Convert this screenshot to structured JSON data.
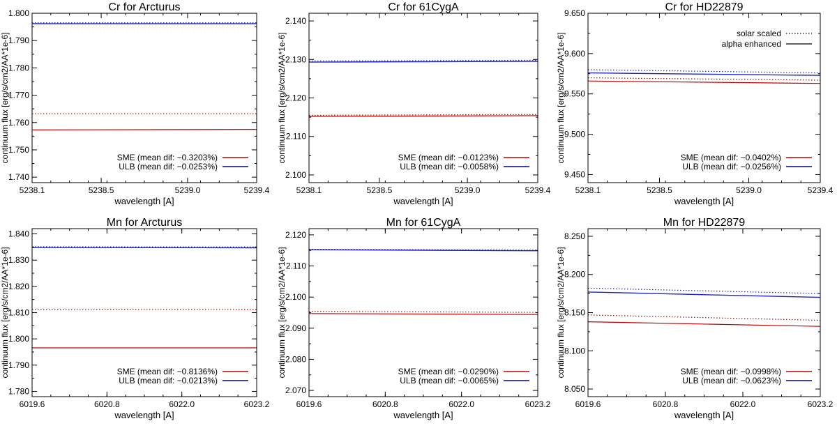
{
  "chart_data": [
    {
      "type": "line",
      "title": "Cr for Arcturus",
      "xlabel": "wavelength [A]",
      "ylabel": "continuum flux [erg/s/cm2/AA*1e-6]",
      "xlim": [
        5238.1,
        5239.4
      ],
      "ylim": [
        1.738,
        1.8
      ],
      "xticks": [
        5238.1,
        5238.5,
        5239.0,
        5239.4
      ],
      "xtick_labels": [
        "5238.1",
        "5238.5",
        "5239.0",
        "5239.4"
      ],
      "yticks": [
        1.74,
        1.75,
        1.76,
        1.77,
        1.78,
        1.79,
        1.8
      ],
      "ytick_labels": [
        "1.740",
        "1.750",
        "1.760",
        "1.770",
        "1.780",
        "1.790",
        "1.800"
      ],
      "legend": {
        "placement": "bottom-right",
        "entries": [
          {
            "label": "SME (mean dif: −0.3203%)",
            "color": "#c00000"
          },
          {
            "label": "ULB (mean dif: −0.0253%)",
            "color": "#00008b"
          }
        ]
      },
      "series": [
        {
          "name": "ULB alpha enhanced",
          "color": "#1a22c8",
          "dash": "solid",
          "x": [
            5238.1,
            5239.4
          ],
          "y": [
            1.7962,
            1.7962
          ]
        },
        {
          "name": "ULB solar scaled",
          "color": "#1a22c8",
          "dash": "dotted",
          "x": [
            5238.1,
            5239.4
          ],
          "y": [
            1.7965,
            1.7965
          ]
        },
        {
          "name": "SME alpha enhanced",
          "color": "#c00000",
          "dash": "solid",
          "x": [
            5238.1,
            5239.4
          ],
          "y": [
            1.7573,
            1.7575
          ]
        },
        {
          "name": "SME solar scaled",
          "color": "#c00000",
          "dash": "dotted",
          "x": [
            5238.1,
            5239.4
          ],
          "y": [
            1.7632,
            1.7632
          ]
        }
      ]
    },
    {
      "type": "line",
      "title": "Cr for 61CygA",
      "xlabel": "wavelength [A]",
      "ylabel": "continuum flux [erg/s/cm2/AA*1e-6]",
      "xlim": [
        5238.1,
        5239.4
      ],
      "ylim": [
        2.098,
        2.142
      ],
      "xticks": [
        5238.1,
        5238.5,
        5239.0,
        5239.4
      ],
      "xtick_labels": [
        "5238.1",
        "5238.5",
        "5239.0",
        "5239.4"
      ],
      "yticks": [
        2.1,
        2.11,
        2.12,
        2.13,
        2.14
      ],
      "ytick_labels": [
        "2.100",
        "2.110",
        "2.120",
        "2.130",
        "2.140"
      ],
      "legend": {
        "placement": "bottom-right",
        "entries": [
          {
            "label": "SME (mean dif: −0.0123%)",
            "color": "#c00000"
          },
          {
            "label": "ULB (mean dif: −0.0058%)",
            "color": "#00008b"
          }
        ]
      },
      "series": [
        {
          "name": "ULB alpha enhanced",
          "color": "#1a22c8",
          "dash": "solid",
          "x": [
            5238.1,
            5239.4
          ],
          "y": [
            2.1293,
            2.1295
          ]
        },
        {
          "name": "ULB solar scaled",
          "color": "#1a22c8",
          "dash": "dotted",
          "x": [
            5238.1,
            5239.4
          ],
          "y": [
            2.1296,
            2.1298
          ]
        },
        {
          "name": "SME alpha enhanced",
          "color": "#c00000",
          "dash": "solid",
          "x": [
            5238.1,
            5239.4
          ],
          "y": [
            2.1152,
            2.1154
          ]
        },
        {
          "name": "SME solar scaled",
          "color": "#c00000",
          "dash": "dotted",
          "x": [
            5238.1,
            5239.4
          ],
          "y": [
            2.1155,
            2.1157
          ]
        }
      ]
    },
    {
      "type": "line",
      "title": "Cr for HD22879",
      "xlabel": "wavelength [A]",
      "ylabel": "continuum flux [erg/s/cm2/AA*1e-6]",
      "xlim": [
        5238.1,
        5239.4
      ],
      "ylim": [
        9.44,
        9.65
      ],
      "xticks": [
        5238.1,
        5238.5,
        5239.0,
        5239.4
      ],
      "xtick_labels": [
        "5238.1",
        "5238.5",
        "5239.0",
        "5239.4"
      ],
      "yticks": [
        9.45,
        9.5,
        9.55,
        9.6,
        9.65
      ],
      "ytick_labels": [
        "9.450",
        "9.500",
        "9.550",
        "9.600",
        "9.650"
      ],
      "style_legend": [
        {
          "label": "solar scaled",
          "dash": "dotted"
        },
        {
          "label": "alpha enhanced",
          "dash": "solid"
        }
      ],
      "legend": {
        "placement": "bottom-right",
        "entries": [
          {
            "label": "SME (mean dif: −0.0402%)",
            "color": "#c00000"
          },
          {
            "label": "ULB (mean dif: −0.0256%)",
            "color": "#00008b"
          }
        ]
      },
      "series": [
        {
          "name": "ULB alpha enhanced",
          "color": "#1a22c8",
          "dash": "solid",
          "x": [
            5238.1,
            5239.4
          ],
          "y": [
            9.576,
            9.573
          ]
        },
        {
          "name": "ULB solar scaled",
          "color": "#1a22c8",
          "dash": "dotted",
          "x": [
            5238.1,
            5239.4
          ],
          "y": [
            9.58,
            9.576
          ]
        },
        {
          "name": "SME alpha enhanced",
          "color": "#c00000",
          "dash": "solid",
          "x": [
            5238.1,
            5239.4
          ],
          "y": [
            9.566,
            9.563
          ]
        },
        {
          "name": "SME solar scaled",
          "color": "#c00000",
          "dash": "dotted",
          "x": [
            5238.1,
            5239.4
          ],
          "y": [
            9.57,
            9.567
          ]
        }
      ]
    },
    {
      "type": "line",
      "title": "Mn for Arcturus",
      "xlabel": "wavelength [A]",
      "ylabel": "continuum flux [erg/s/cm2/AA*1e-6]",
      "xlim": [
        6019.6,
        6023.2
      ],
      "ylim": [
        1.778,
        1.842
      ],
      "xticks": [
        6019.6,
        6020.8,
        6022.0,
        6023.2
      ],
      "xtick_labels": [
        "6019.6",
        "6020.8",
        "6022.0",
        "6023.2"
      ],
      "yticks": [
        1.78,
        1.79,
        1.8,
        1.81,
        1.82,
        1.83,
        1.84
      ],
      "ytick_labels": [
        "1.780",
        "1.790",
        "1.800",
        "1.810",
        "1.820",
        "1.830",
        "1.840"
      ],
      "legend": {
        "placement": "bottom-right",
        "entries": [
          {
            "label": "SME (mean dif: −0.8136%)",
            "color": "#c00000"
          },
          {
            "label": "ULB (mean dif: −0.0213%)",
            "color": "#00008b"
          }
        ]
      },
      "series": [
        {
          "name": "ULB alpha enhanced",
          "color": "#1a22c8",
          "dash": "solid",
          "x": [
            6019.6,
            6023.2
          ],
          "y": [
            1.8348,
            1.8347
          ]
        },
        {
          "name": "ULB solar scaled",
          "color": "#1a22c8",
          "dash": "dotted",
          "x": [
            6019.6,
            6023.2
          ],
          "y": [
            1.8351,
            1.835
          ]
        },
        {
          "name": "SME alpha enhanced",
          "color": "#c00000",
          "dash": "solid",
          "x": [
            6019.6,
            6023.2
          ],
          "y": [
            1.7966,
            1.7966
          ]
        },
        {
          "name": "SME solar scaled",
          "color": "#c00000",
          "dash": "dotted",
          "x": [
            6019.6,
            6023.2
          ],
          "y": [
            1.8113,
            1.8112
          ]
        }
      ]
    },
    {
      "type": "line",
      "title": "Mn for 61CygA",
      "xlabel": "wavelength [A]",
      "ylabel": "continuum flux [erg/s/cm2/AA*1e-6]",
      "xlim": [
        6019.6,
        6023.2
      ],
      "ylim": [
        2.068,
        2.122
      ],
      "xticks": [
        6019.6,
        6020.8,
        6022.0,
        6023.2
      ],
      "xtick_labels": [
        "6019.6",
        "6020.8",
        "6022.0",
        "6023.2"
      ],
      "yticks": [
        2.07,
        2.08,
        2.09,
        2.1,
        2.11,
        2.12
      ],
      "ytick_labels": [
        "2.070",
        "2.080",
        "2.090",
        "2.100",
        "2.110",
        "2.120"
      ],
      "legend": {
        "placement": "bottom-right",
        "entries": [
          {
            "label": "SME (mean dif: −0.0290%)",
            "color": "#c00000"
          },
          {
            "label": "ULB (mean dif: −0.0065%)",
            "color": "#00008b"
          }
        ]
      },
      "series": [
        {
          "name": "ULB alpha enhanced",
          "color": "#1a22c8",
          "dash": "solid",
          "x": [
            6019.6,
            6023.2
          ],
          "y": [
            2.1152,
            2.1149
          ]
        },
        {
          "name": "ULB solar scaled",
          "color": "#1a22c8",
          "dash": "dotted",
          "x": [
            6019.6,
            6023.2
          ],
          "y": [
            2.1154,
            2.1151
          ]
        },
        {
          "name": "SME alpha enhanced",
          "color": "#c00000",
          "dash": "solid",
          "x": [
            6019.6,
            6023.2
          ],
          "y": [
            2.0947,
            2.0944
          ]
        },
        {
          "name": "SME solar scaled",
          "color": "#c00000",
          "dash": "dotted",
          "x": [
            6019.6,
            6023.2
          ],
          "y": [
            2.0954,
            2.0951
          ]
        }
      ]
    },
    {
      "type": "line",
      "title": "Mn for HD22879",
      "xlabel": "wavelength [A]",
      "ylabel": "continuum flux [erg/s/cm2/AA*1e-6]",
      "xlim": [
        6019.6,
        6023.2
      ],
      "ylim": [
        8.04,
        8.26
      ],
      "xticks": [
        6019.6,
        6020.8,
        6022.0,
        6023.2
      ],
      "xtick_labels": [
        "6019.6",
        "6020.8",
        "6022.0",
        "6023.2"
      ],
      "yticks": [
        8.05,
        8.1,
        8.15,
        8.2,
        8.25
      ],
      "ytick_labels": [
        "8.050",
        "8.100",
        "8.150",
        "8.200",
        "8.250"
      ],
      "legend": {
        "placement": "bottom-right",
        "entries": [
          {
            "label": "SME (mean dif: −0.0998%)",
            "color": "#c00000"
          },
          {
            "label": "ULB (mean dif: −0.0623%)",
            "color": "#00008b"
          }
        ]
      },
      "series": [
        {
          "name": "ULB alpha enhanced",
          "color": "#1a22c8",
          "dash": "solid",
          "x": [
            6019.6,
            6023.2
          ],
          "y": [
            8.177,
            8.17
          ]
        },
        {
          "name": "ULB solar scaled",
          "color": "#1a22c8",
          "dash": "dotted",
          "x": [
            6019.6,
            6023.2
          ],
          "y": [
            8.182,
            8.175
          ]
        },
        {
          "name": "SME alpha enhanced",
          "color": "#c00000",
          "dash": "solid",
          "x": [
            6019.6,
            6023.2
          ],
          "y": [
            8.138,
            8.132
          ]
        },
        {
          "name": "SME solar scaled",
          "color": "#c00000",
          "dash": "dotted",
          "x": [
            6019.6,
            6023.2
          ],
          "y": [
            8.147,
            8.14
          ]
        }
      ]
    }
  ]
}
